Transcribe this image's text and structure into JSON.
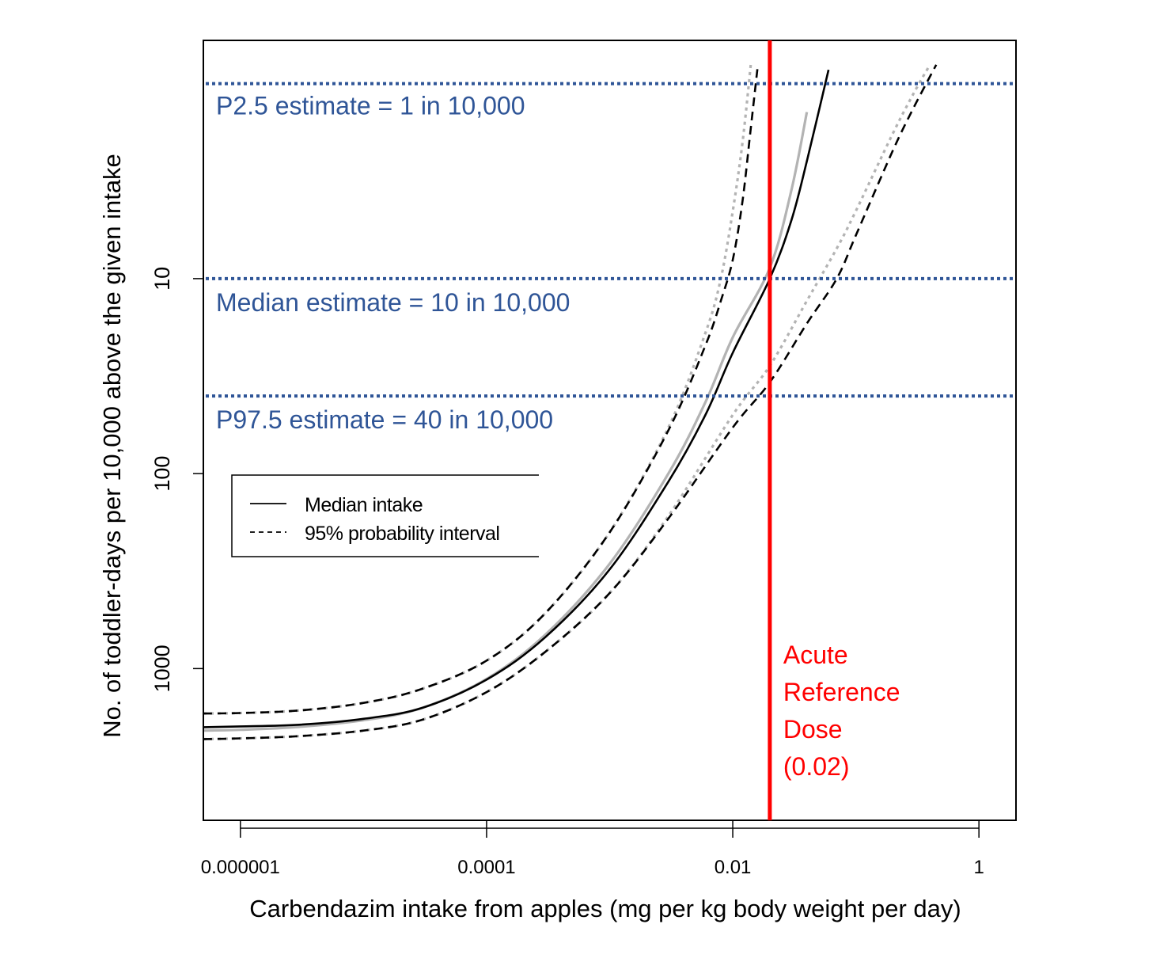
{
  "chart_data": {
    "type": "line",
    "xlabel": "Carbendazim intake from apples (mg per kg body weight per day)",
    "ylabel": "No. of toddler-days per 10,000 above the given intake",
    "x_scale": "log",
    "y_scale": "log",
    "y_inverted": true,
    "xlim": [
      5e-07,
      2
    ],
    "ylim": [
      0.6,
      6000
    ],
    "x_ticks": [
      {
        "value": 1e-06,
        "label": "0.000001"
      },
      {
        "value": 0.0001,
        "label": "0.0001"
      },
      {
        "value": 0.01,
        "label": "0.01"
      },
      {
        "value": 1,
        "label": "1"
      }
    ],
    "y_ticks": [
      {
        "value": 10,
        "label": "10"
      },
      {
        "value": 100,
        "label": "100"
      },
      {
        "value": 1000,
        "label": "1000"
      }
    ],
    "legend": {
      "placement": "center-left",
      "entries": [
        {
          "label": "Median intake",
          "style": "solid"
        },
        {
          "label": "95% probability interval",
          "style": "dashed"
        }
      ]
    },
    "series": [
      {
        "name": "Median intake",
        "style": "solid",
        "color": "#000000",
        "x": [
          5e-07,
          1e-06,
          3e-06,
          1e-05,
          3e-05,
          0.0001,
          0.0003,
          0.001,
          0.003,
          0.006,
          0.01,
          0.02,
          0.03,
          0.04,
          0.06
        ],
        "y": [
          2000,
          1980,
          1940,
          1810,
          1590,
          1140,
          690,
          310,
          110,
          50,
          24,
          10,
          5,
          2.5,
          0.85
        ]
      },
      {
        "style": "solid",
        "color": "#b3b3b3",
        "x": [
          5e-07,
          1e-06,
          3e-06,
          1e-05,
          3e-05,
          0.0001,
          0.0003,
          0.001,
          0.003,
          0.006,
          0.01,
          0.02,
          0.03,
          0.04
        ],
        "y": [
          2080,
          2060,
          1990,
          1840,
          1590,
          1130,
          670,
          290,
          100,
          43,
          20,
          8.8,
          3.5,
          1.4
        ]
      },
      {
        "style": "dashed",
        "color": "#000000",
        "x": [
          5e-07,
          1e-06,
          3e-06,
          1e-05,
          3e-05,
          0.0001,
          0.0003,
          0.001,
          0.003,
          0.006,
          0.008,
          0.01,
          0.012,
          0.014,
          0.016
        ],
        "y": [
          1700,
          1690,
          1640,
          1500,
          1270,
          910,
          520,
          200,
          60,
          22,
          13,
          8,
          4,
          1.7,
          0.8
        ]
      },
      {
        "style": "dashed",
        "color": "#000000",
        "x": [
          5e-07,
          1e-06,
          3e-06,
          1e-05,
          3e-05,
          0.0001,
          0.0003,
          0.001,
          0.003,
          0.01,
          0.02,
          0.04,
          0.07,
          0.1,
          0.2,
          0.3,
          0.45
        ],
        "y": [
          2300,
          2280,
          2220,
          2080,
          1830,
          1320,
          820,
          410,
          170,
          58,
          34,
          17,
          10,
          6,
          2.2,
          1.3,
          0.8
        ]
      },
      {
        "style": "dotted",
        "color": "#b3b3b3",
        "x": [
          5e-07,
          1e-06,
          3e-06,
          1e-05,
          3e-05,
          0.0001,
          0.0003,
          0.001,
          0.003,
          0.006,
          0.008,
          0.01,
          0.012,
          0.014
        ],
        "y": [
          1700,
          1690,
          1640,
          1500,
          1270,
          910,
          520,
          200,
          58,
          19,
          10,
          4.5,
          2,
          0.8
        ]
      },
      {
        "style": "dotted",
        "color": "#b3b3b3",
        "x": [
          5e-07,
          1e-06,
          3e-06,
          1e-05,
          3e-05,
          0.0001,
          0.0003,
          0.001,
          0.003,
          0.01,
          0.02,
          0.04,
          0.07,
          0.1,
          0.2,
          0.3,
          0.4
        ],
        "y": [
          2300,
          2280,
          2220,
          2080,
          1830,
          1320,
          820,
          410,
          165,
          50,
          28,
          13,
          7,
          4.5,
          1.8,
          1.1,
          0.8
        ]
      }
    ],
    "reference_lines": {
      "horizontal": [
        {
          "y": 1,
          "label": "P2.5 estimate = 1 in 10,000"
        },
        {
          "y": 10,
          "label": "Median estimate = 10 in 10,000"
        },
        {
          "y": 40,
          "label": "P97.5 estimate = 40 in 10,000"
        }
      ],
      "vertical": {
        "x": 0.02,
        "label_lines": [
          "Acute",
          "Reference",
          "Dose",
          "(0.02)"
        ]
      }
    },
    "colors": {
      "reference_hlines": "#2f5597",
      "reference_vline": "#ff0000",
      "median_grey": "#b3b3b3",
      "axis": "#000000"
    }
  }
}
